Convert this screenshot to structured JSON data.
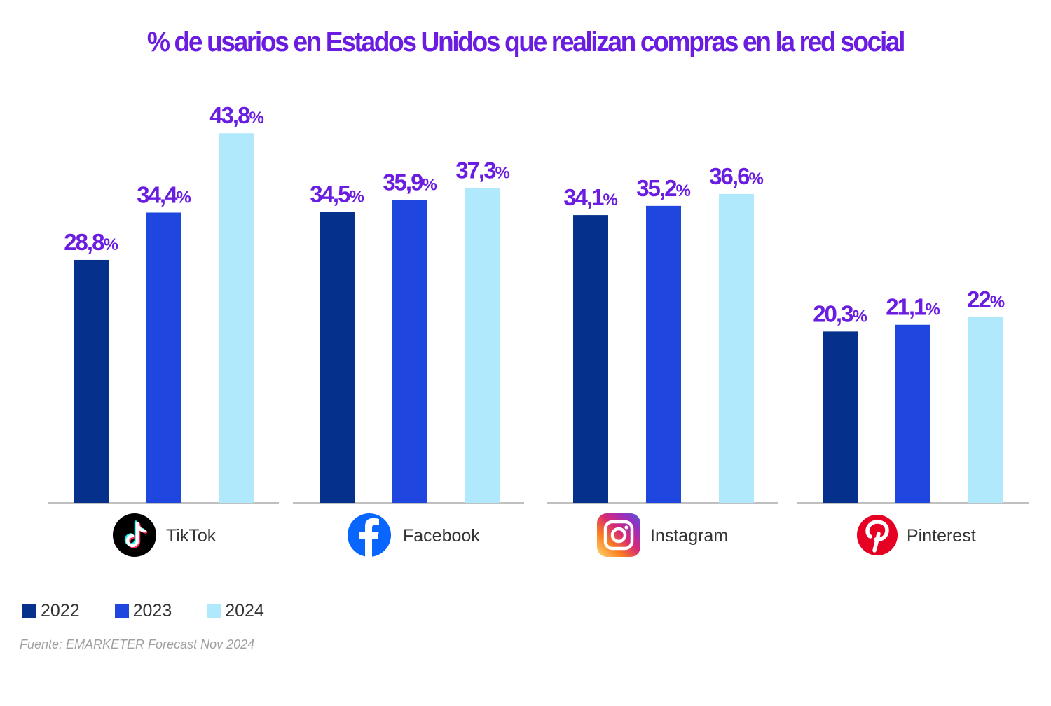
{
  "colors": {
    "title": "#6a1de0",
    "value_label": "#6a1de0",
    "axis": "#9a9a9a",
    "series": [
      "#05308c",
      "#1f47e0",
      "#b0e9fb"
    ]
  },
  "chart_data": {
    "type": "bar",
    "title": "% de usarios en Estados Unidos que realizan compras en la red social",
    "categories": [
      "TikTok",
      "Facebook",
      "Instagram",
      "Pinterest"
    ],
    "category_icons": [
      "tiktok-icon",
      "facebook-icon",
      "instagram-icon",
      "pinterest-icon"
    ],
    "series": [
      {
        "name": "2022",
        "values": [
          28.8,
          34.5,
          34.1,
          20.3
        ],
        "labels": [
          "28,8",
          "34,5",
          "34,1",
          "20,3"
        ]
      },
      {
        "name": "2023",
        "values": [
          34.4,
          35.9,
          35.2,
          21.1
        ],
        "labels": [
          "34,4",
          "35,9",
          "35,2",
          "21,1"
        ]
      },
      {
        "name": "2024",
        "values": [
          43.8,
          37.3,
          36.6,
          22.0
        ],
        "labels": [
          "43,8",
          "37,3",
          "36,6",
          "22"
        ]
      }
    ],
    "value_suffix": "%",
    "ylim": [
      0,
      45
    ],
    "grid": false,
    "legend_position": "bottom-left",
    "source": "Fuente: EMARKETER Forecast Nov 2024"
  }
}
